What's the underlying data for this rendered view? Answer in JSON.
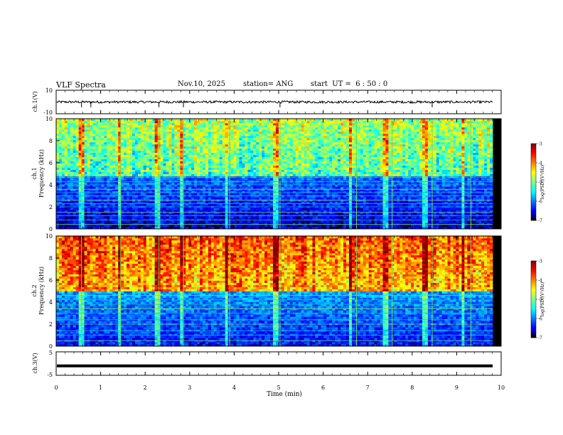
{
  "header": {
    "title": "VLF Spectra",
    "date": "Nov.10, 2025",
    "station": "station= ANG",
    "start_time": "start  UT =  6 : 50 : 0"
  },
  "chart_data": [
    {
      "type": "line",
      "panel": "ch1-waveform",
      "ylabel": "ch.1(V)",
      "ylim": [
        -10,
        10
      ],
      "y_tick_labels": [
        "10",
        "-10"
      ],
      "xlim": [
        0,
        10
      ],
      "baseline_value": 0,
      "noise_amplitude": 1,
      "spikes_min": [
        0.57,
        0.78,
        2.31,
        2.86,
        5.03,
        8.45
      ]
    },
    {
      "type": "heatmap",
      "panel": "ch1-spectrogram",
      "ylabel": "Frequency (kHz)",
      "channel_label": "ch.1",
      "xlim": [
        0,
        10
      ],
      "ylim": [
        0,
        10
      ],
      "y_ticks": [
        0,
        2,
        4,
        6,
        8,
        10
      ],
      "colorbar": {
        "label": "log(PSD)(V²/Hz)",
        "range": [
          -7,
          -3
        ],
        "ticks": [
          -3,
          -4,
          -5,
          -6,
          -7
        ]
      },
      "dominant_band_kHz": [
        4.8,
        10
      ],
      "band_level_log_psd": -5.2,
      "floor_level_log_psd": -6.8,
      "narrowband_lines_kHz": [
        0.4,
        0.8,
        1.2,
        1.5,
        2.0,
        2.3,
        2.6,
        3.0,
        3.3,
        3.6,
        4.0,
        4.3,
        4.7
      ],
      "impulses_min": [
        0.57,
        1.45,
        2.31,
        2.86,
        3.9,
        5.03,
        6.75,
        7.55,
        8.45,
        9.32
      ]
    },
    {
      "type": "heatmap",
      "panel": "ch2-spectrogram",
      "ylabel": "Frequency (kHz)",
      "channel_label": "ch.2",
      "xlim": [
        0,
        10
      ],
      "ylim": [
        0,
        10
      ],
      "y_ticks": [
        0,
        2,
        4,
        6,
        8,
        10
      ],
      "colorbar": {
        "label": "log(PSD)(V²/Hz)",
        "range": [
          -7,
          -3
        ],
        "ticks": [
          -3,
          -4,
          -5,
          -6,
          -7
        ]
      },
      "dominant_band_kHz": [
        5.0,
        10
      ],
      "band_level_log_psd": -4.2,
      "floor_level_log_psd": -6.6,
      "narrowband_lines_kHz": [
        0.5,
        1.0,
        1.4,
        2.0,
        2.4,
        3.0,
        3.4,
        3.8,
        4.2,
        4.6
      ],
      "impulses_min": [
        0.57,
        1.45,
        2.31,
        2.86,
        3.9,
        5.03,
        6.75,
        7.55,
        8.45,
        9.32
      ]
    },
    {
      "type": "line",
      "panel": "ch3-waveform",
      "ylabel": "ch.3(V)",
      "ylim": [
        -5,
        5
      ],
      "y_tick_labels": [
        "5",
        "-5"
      ],
      "xlim": [
        0,
        10
      ],
      "baseline_value": -1
    }
  ],
  "x_axis": {
    "label": "Time (min)",
    "ticks": [
      "0",
      "1",
      "2",
      "3",
      "4",
      "5",
      "6",
      "7",
      "8",
      "9",
      "10"
    ]
  }
}
